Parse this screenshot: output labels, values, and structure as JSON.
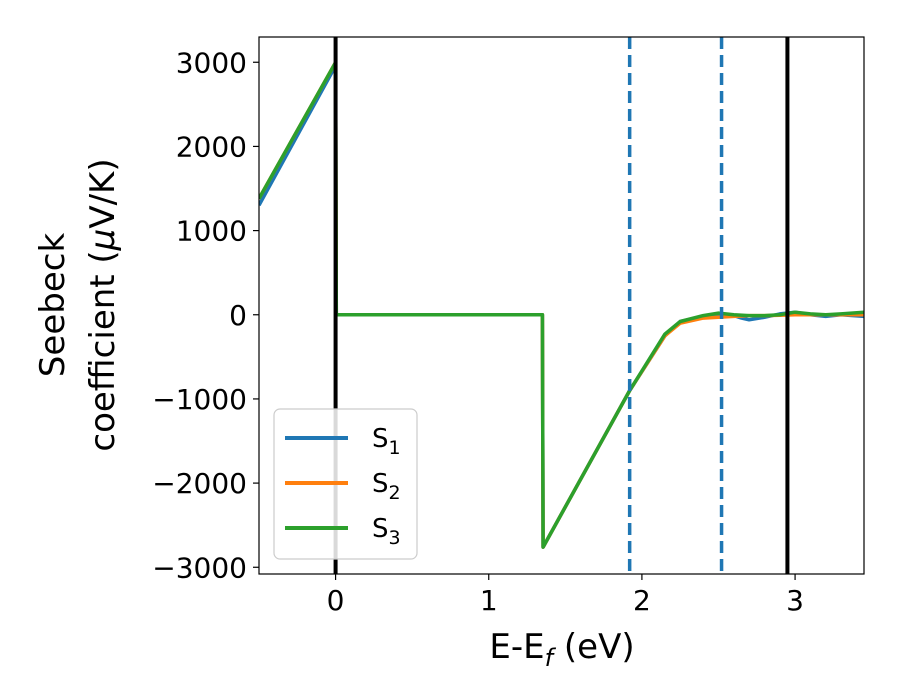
{
  "chart_data": {
    "type": "line",
    "xlabel": "E-E",
    "xlabel_sub": "f",
    "xlabel_unit": " (eV)",
    "ylabel_line1": "Seebeck",
    "ylabel_line2": "coefficient  (",
    "ylabel_mu": "μ",
    "ylabel_unit_end": "V/K)",
    "xlim": [
      -0.5,
      3.45
    ],
    "ylim": [
      -3080,
      3300
    ],
    "xticks": [
      0,
      1,
      2,
      3
    ],
    "xtick_labels": [
      "0",
      "1",
      "2",
      "3"
    ],
    "yticks": [
      3000,
      2000,
      1000,
      0,
      -1000,
      -2000,
      -3000
    ],
    "ytick_labels": [
      "3000",
      "2000",
      "1000",
      "0",
      "−1000",
      "−2000",
      "−3000"
    ],
    "vertical_lines": [
      {
        "x": 0.0,
        "style": "solid",
        "color": "#000000"
      },
      {
        "x": 2.95,
        "style": "solid",
        "color": "#000000"
      },
      {
        "x": 1.92,
        "style": "dashed",
        "color": "#1f77b4"
      },
      {
        "x": 2.52,
        "style": "dashed",
        "color": "#1f77b4"
      }
    ],
    "legend_position": "lower-left",
    "series": [
      {
        "name": "S",
        "sub": "1",
        "color": "#1f77b4",
        "x": [
          -0.5,
          0.0,
          0.005,
          1.35,
          1.355,
          1.92,
          2.15,
          2.25,
          2.4,
          2.5,
          2.6,
          2.65,
          2.7,
          2.8,
          2.9,
          3.0,
          3.1,
          3.2,
          3.3,
          3.45
        ],
        "y": [
          1300,
          2960,
          0,
          0,
          -2760,
          -900,
          -250,
          -80,
          -20,
          0,
          -10,
          -40,
          -60,
          -30,
          10,
          30,
          0,
          -20,
          0,
          -20
        ]
      },
      {
        "name": "S",
        "sub": "2",
        "color": "#ff7f0e",
        "x": [
          -0.5,
          0.0,
          0.005,
          1.35,
          1.355,
          1.92,
          2.15,
          2.25,
          2.4,
          2.5,
          2.6,
          2.7,
          2.8,
          2.9,
          3.0,
          3.1,
          3.2,
          3.3,
          3.45
        ],
        "y": [
          1380,
          3000,
          0,
          0,
          -2760,
          -900,
          -250,
          -100,
          -40,
          -30,
          -20,
          -10,
          -10,
          -5,
          0,
          0,
          0,
          0,
          0
        ]
      },
      {
        "name": "S",
        "sub": "3",
        "color": "#2ca02c",
        "x": [
          -0.5,
          0.0,
          0.005,
          1.35,
          1.355,
          1.92,
          2.15,
          2.25,
          2.4,
          2.5,
          2.6,
          2.7,
          2.8,
          2.9,
          3.0,
          3.1,
          3.2,
          3.3,
          3.45
        ],
        "y": [
          1380,
          3000,
          0,
          0,
          -2760,
          -900,
          -230,
          -80,
          -10,
          20,
          0,
          -10,
          -10,
          0,
          30,
          10,
          0,
          10,
          30
        ]
      }
    ]
  }
}
